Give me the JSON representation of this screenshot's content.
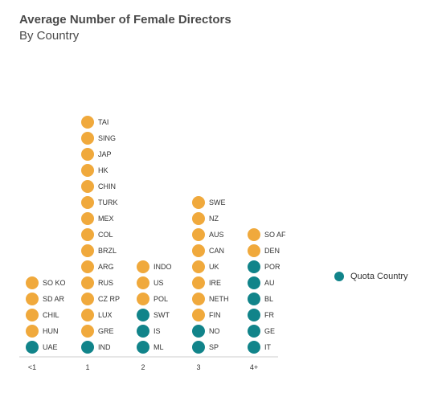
{
  "chart_data": {
    "type": "dot-stack",
    "title": "Average Number of Female Directors",
    "subtitle": "By Country",
    "categories": [
      "<1",
      "1",
      "2",
      "3",
      "4+"
    ],
    "colors": {
      "non_quota": "#F0A93C",
      "quota": "#11848A"
    },
    "legend": [
      {
        "label": "Quota Country",
        "kind": "quota"
      }
    ],
    "legend_position": "right",
    "stacks": [
      [
        {
          "label": "UAE",
          "quota": true
        },
        {
          "label": "HUN",
          "quota": false
        },
        {
          "label": "CHIL",
          "quota": false
        },
        {
          "label": "SD AR",
          "quota": false
        },
        {
          "label": "SO KO",
          "quota": false
        }
      ],
      [
        {
          "label": "IND",
          "quota": true
        },
        {
          "label": "GRE",
          "quota": false
        },
        {
          "label": "LUX",
          "quota": false
        },
        {
          "label": "CZ RP",
          "quota": false
        },
        {
          "label": "RUS",
          "quota": false
        },
        {
          "label": "ARG",
          "quota": false
        },
        {
          "label": "BRZL",
          "quota": false
        },
        {
          "label": "COL",
          "quota": false
        },
        {
          "label": "MEX",
          "quota": false
        },
        {
          "label": "TURK",
          "quota": false
        },
        {
          "label": "CHIN",
          "quota": false
        },
        {
          "label": "HK",
          "quota": false
        },
        {
          "label": "JAP",
          "quota": false
        },
        {
          "label": "SING",
          "quota": false
        },
        {
          "label": "TAI",
          "quota": false
        }
      ],
      [
        {
          "label": "ML",
          "quota": true
        },
        {
          "label": "IS",
          "quota": true
        },
        {
          "label": "SWT",
          "quota": true
        },
        {
          "label": "POL",
          "quota": false
        },
        {
          "label": "US",
          "quota": false
        },
        {
          "label": "INDO",
          "quota": false
        }
      ],
      [
        {
          "label": "SP",
          "quota": true
        },
        {
          "label": "NO",
          "quota": true
        },
        {
          "label": "FIN",
          "quota": false
        },
        {
          "label": "NETH",
          "quota": false
        },
        {
          "label": "IRE",
          "quota": false
        },
        {
          "label": "UK",
          "quota": false
        },
        {
          "label": "CAN",
          "quota": false
        },
        {
          "label": "AUS",
          "quota": false
        },
        {
          "label": "NZ",
          "quota": false
        },
        {
          "label": "SWE",
          "quota": false
        }
      ],
      [
        {
          "label": "IT",
          "quota": true
        },
        {
          "label": "GE",
          "quota": true
        },
        {
          "label": "FR",
          "quota": true
        },
        {
          "label": "BL",
          "quota": true
        },
        {
          "label": "AU",
          "quota": true
        },
        {
          "label": "POR",
          "quota": true
        },
        {
          "label": "DEN",
          "quota": false
        },
        {
          "label": "SO AF",
          "quota": false
        }
      ]
    ]
  }
}
